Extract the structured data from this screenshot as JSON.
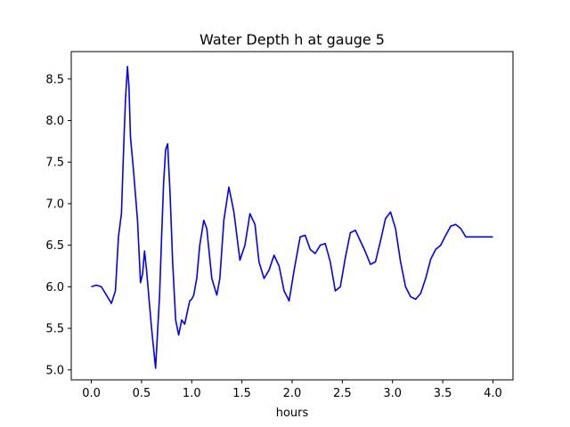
{
  "chart_data": {
    "type": "line",
    "title": "Water Depth h at gauge 5",
    "xlabel": "hours",
    "ylabel": "",
    "xlim": [
      -0.2,
      4.2
    ],
    "ylim": [
      4.88,
      8.83
    ],
    "xticks": [
      0.0,
      0.5,
      1.0,
      1.5,
      2.0,
      2.5,
      3.0,
      3.5,
      4.0
    ],
    "xtick_labels": [
      "0.0",
      "0.5",
      "1.0",
      "1.5",
      "2.0",
      "2.5",
      "3.0",
      "3.5",
      "4.0"
    ],
    "yticks": [
      5.0,
      5.5,
      6.0,
      6.5,
      7.0,
      7.5,
      8.0,
      8.5
    ],
    "ytick_labels": [
      "5.0",
      "5.5",
      "6.0",
      "6.5",
      "7.0",
      "7.5",
      "8.0",
      "8.5"
    ],
    "grid": false,
    "series": [
      {
        "color": "#0000ff",
        "x": [
          0.0,
          0.05,
          0.1,
          0.15,
          0.2,
          0.24,
          0.27,
          0.3,
          0.32,
          0.34,
          0.36,
          0.375,
          0.39,
          0.42,
          0.46,
          0.49,
          0.51,
          0.53,
          0.55,
          0.575,
          0.6,
          0.64,
          0.68,
          0.7,
          0.72,
          0.74,
          0.76,
          0.785,
          0.81,
          0.84,
          0.87,
          0.9,
          0.93,
          0.96,
          0.98,
          1.0,
          1.02,
          1.05,
          1.08,
          1.12,
          1.15,
          1.2,
          1.25,
          1.28,
          1.32,
          1.37,
          1.42,
          1.48,
          1.53,
          1.58,
          1.63,
          1.67,
          1.72,
          1.77,
          1.82,
          1.87,
          1.92,
          1.97,
          2.02,
          2.08,
          2.13,
          2.18,
          2.23,
          2.28,
          2.33,
          2.38,
          2.43,
          2.48,
          2.53,
          2.58,
          2.63,
          2.68,
          2.73,
          2.78,
          2.83,
          2.88,
          2.93,
          2.98,
          3.03,
          3.08,
          3.13,
          3.18,
          3.23,
          3.28,
          3.33,
          3.38,
          3.43,
          3.48,
          3.53,
          3.58,
          3.63,
          3.68,
          3.73,
          3.78,
          3.83,
          3.88,
          3.93,
          3.97,
          4.0
        ],
        "y": [
          6.0,
          6.02,
          6.0,
          5.9,
          5.8,
          5.95,
          6.6,
          6.88,
          7.6,
          8.25,
          8.65,
          8.4,
          7.8,
          7.4,
          6.8,
          6.05,
          6.15,
          6.43,
          6.2,
          5.85,
          5.5,
          5.02,
          5.9,
          6.6,
          7.25,
          7.65,
          7.72,
          7.1,
          6.3,
          5.6,
          5.42,
          5.6,
          5.55,
          5.72,
          5.83,
          5.85,
          5.9,
          6.1,
          6.5,
          6.8,
          6.7,
          6.1,
          5.9,
          6.1,
          6.8,
          7.2,
          6.9,
          6.32,
          6.5,
          6.88,
          6.75,
          6.3,
          6.1,
          6.2,
          6.38,
          6.25,
          5.95,
          5.83,
          6.2,
          6.6,
          6.62,
          6.45,
          6.4,
          6.5,
          6.52,
          6.3,
          5.95,
          6.0,
          6.35,
          6.65,
          6.68,
          6.55,
          6.42,
          6.27,
          6.3,
          6.55,
          6.82,
          6.9,
          6.7,
          6.3,
          6.0,
          5.88,
          5.85,
          5.92,
          6.1,
          6.33,
          6.45,
          6.5,
          6.62,
          6.73,
          6.75,
          6.7,
          6.6,
          6.6,
          6.6,
          6.6,
          6.6,
          6.6,
          6.6
        ]
      }
    ]
  }
}
